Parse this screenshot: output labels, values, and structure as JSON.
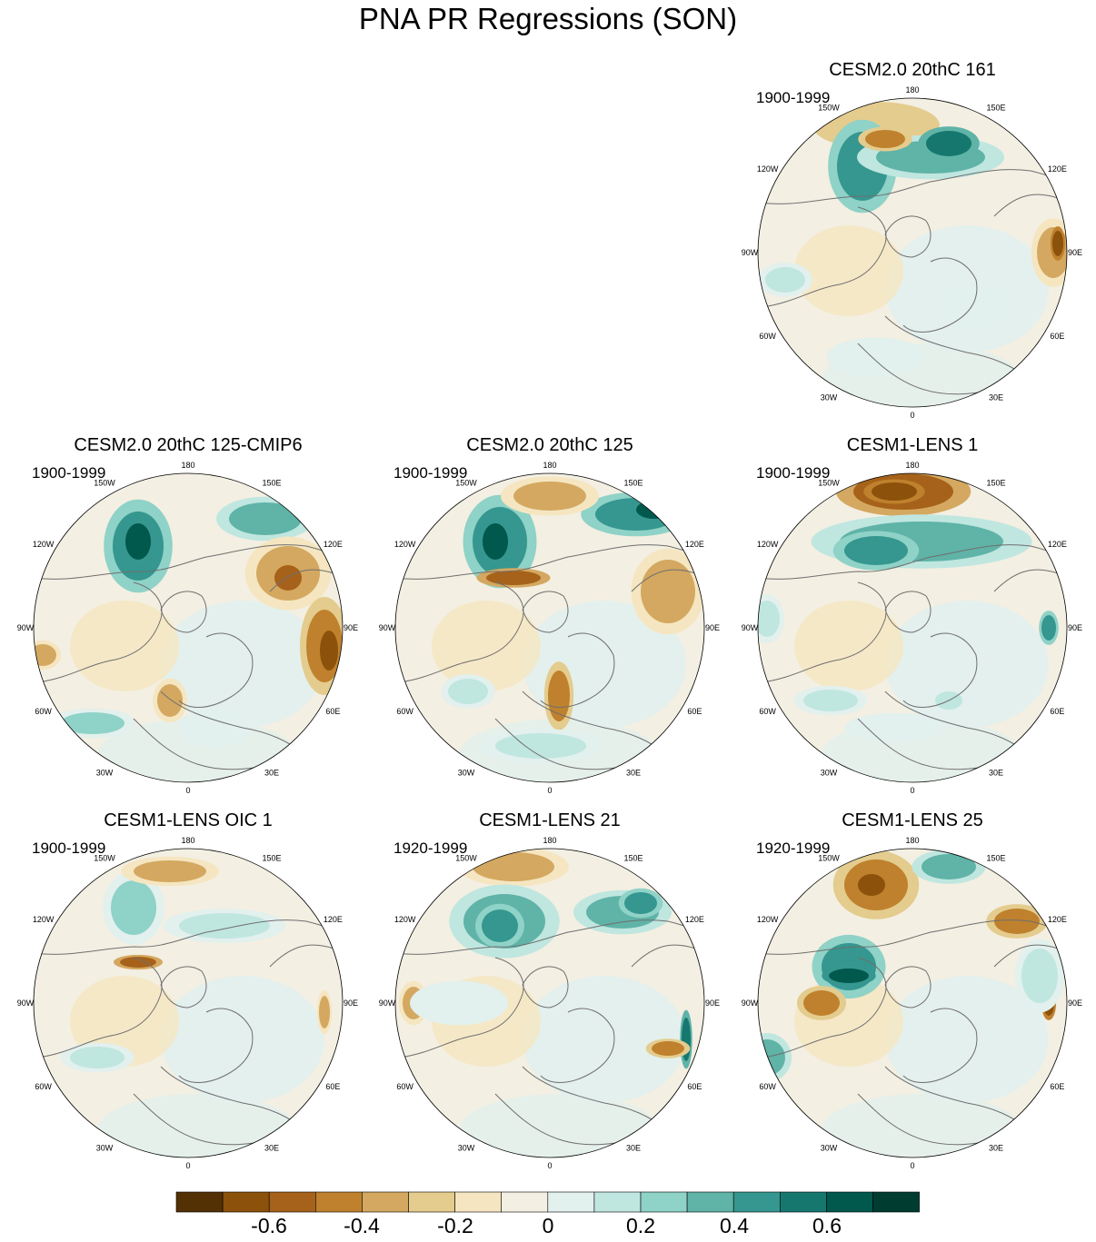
{
  "title": "PNA PR Regressions (SON)",
  "panels": [
    {
      "title": "CESM2.0 20thC 161",
      "years": "1900-1999"
    },
    {
      "title": "CESM2.0 20thC 125-CMIP6",
      "years": "1900-1999"
    },
    {
      "title": "CESM2.0 20thC 125",
      "years": "1900-1999"
    },
    {
      "title": "CESM1-LENS 1",
      "years": "1900-1999"
    },
    {
      "title": "CESM1-LENS OIC 1",
      "years": "1900-1999"
    },
    {
      "title": "CESM1-LENS 21",
      "years": "1920-1999"
    },
    {
      "title": "CESM1-LENS 25",
      "years": "1920-1999"
    }
  ],
  "longitude_labels": [
    "180",
    "150E",
    "120E",
    "90E",
    "60E",
    "30E",
    "0",
    "30W",
    "60W",
    "90W",
    "120W",
    "150W"
  ],
  "colorbar": {
    "colors": [
      "#543005",
      "#8c510a",
      "#a6621a",
      "#bf812d",
      "#d4a860",
      "#e4cc8e",
      "#f5e6c1",
      "#f3efe2",
      "#e2f0ee",
      "#c0e6e0",
      "#8fd2c7",
      "#5fb3a7",
      "#35978f",
      "#16776f",
      "#01584d",
      "#003c30"
    ],
    "tick_labels": [
      "-0.6",
      "-0.4",
      "-0.2",
      "0",
      "0.2",
      "0.4",
      "0.6"
    ]
  }
}
